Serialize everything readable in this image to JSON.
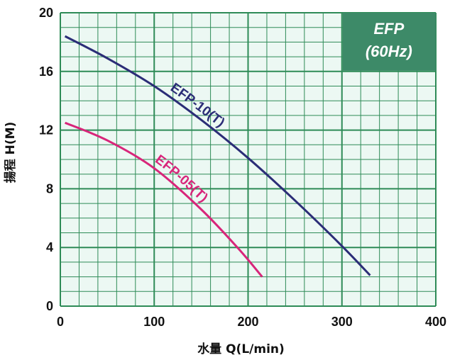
{
  "chart_data": {
    "type": "line",
    "xlabel": "水量 Q(L/min)",
    "ylabel": "揚程 H(M)",
    "xlim": [
      0,
      400
    ],
    "ylim": [
      0,
      20
    ],
    "x_ticks": [
      "0",
      "100",
      "200",
      "300",
      "400"
    ],
    "y_ticks": [
      "0",
      "4",
      "8",
      "12",
      "16",
      "20"
    ],
    "grid": true,
    "grid_color": "#2e8b57",
    "background_color": "#ecf8f3",
    "badge": {
      "line1": "EFP",
      "line2": "(60Hz)",
      "color": "#3d8a68",
      "placement": "top-right"
    },
    "series": [
      {
        "name": "EFP-10(T)",
        "color": "#2b2d77",
        "x": [
          5,
          50,
          100,
          150,
          200,
          250,
          300,
          330
        ],
        "y": [
          18.4,
          16.9,
          15.0,
          12.7,
          10.1,
          7.2,
          4.1,
          2.1
        ]
      },
      {
        "name": "EFP-05(T)",
        "color": "#d8257a",
        "x": [
          5,
          50,
          100,
          150,
          190,
          215
        ],
        "y": [
          12.5,
          11.3,
          9.4,
          6.6,
          3.9,
          2.0
        ]
      }
    ]
  }
}
